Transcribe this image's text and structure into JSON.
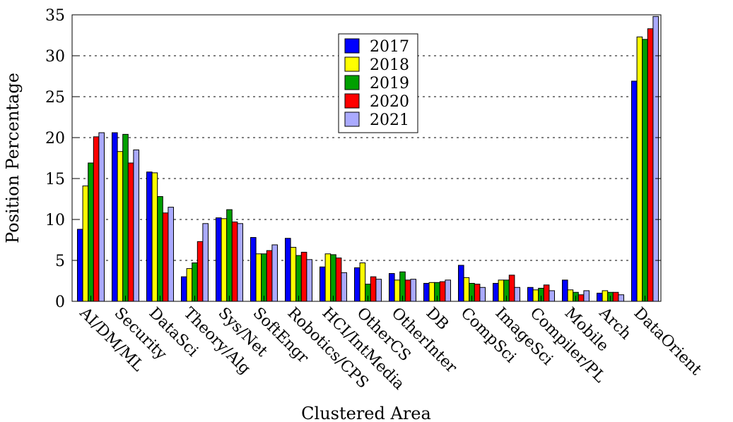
{
  "chart_data": {
    "type": "bar",
    "xlabel": "Clustered Area",
    "ylabel": "Position Percentage",
    "ylim": [
      0,
      35
    ],
    "yticks": [
      0,
      5,
      10,
      15,
      20,
      25,
      30,
      35
    ],
    "grid": true,
    "legend_position": "top-center",
    "categories": [
      "AI/DM/ML",
      "Security",
      "DataSci",
      "Theory/Alg",
      "Sys/Net",
      "SoftEngr",
      "Robotics/CPS",
      "HCI/IntMedia",
      "OtherCS",
      "OtherInter",
      "DB",
      "CompSci",
      "ImageSci",
      "Compiler/PL",
      "Mobile",
      "Arch",
      "DataOrient"
    ],
    "series": [
      {
        "name": "2017",
        "color": "#0000ff",
        "values": [
          8.8,
          20.6,
          15.8,
          3.0,
          10.2,
          7.8,
          7.7,
          4.2,
          4.1,
          3.4,
          2.2,
          4.4,
          2.2,
          1.7,
          2.6,
          1.0,
          26.9
        ]
      },
      {
        "name": "2018",
        "color": "#ffff00",
        "values": [
          14.1,
          18.3,
          15.7,
          4.0,
          10.1,
          5.8,
          6.6,
          5.8,
          4.7,
          2.6,
          2.3,
          2.9,
          2.6,
          1.4,
          1.4,
          1.3,
          32.3
        ]
      },
      {
        "name": "2019",
        "color": "#00a000",
        "values": [
          16.9,
          20.4,
          12.8,
          4.7,
          11.2,
          5.8,
          5.6,
          5.7,
          2.1,
          3.6,
          2.3,
          2.2,
          2.6,
          1.6,
          1.1,
          1.1,
          32.0
        ]
      },
      {
        "name": "2020",
        "color": "#ff0000",
        "values": [
          20.1,
          16.9,
          10.8,
          7.3,
          9.7,
          6.2,
          6.0,
          5.3,
          3.0,
          2.6,
          2.4,
          2.1,
          3.2,
          2.0,
          0.8,
          1.1,
          33.3
        ]
      },
      {
        "name": "2021",
        "color": "#aaaaff",
        "values": [
          20.6,
          18.5,
          11.5,
          9.5,
          9.5,
          6.9,
          5.1,
          3.5,
          2.7,
          2.7,
          2.6,
          1.7,
          1.7,
          1.3,
          1.3,
          0.8,
          34.8
        ]
      }
    ]
  }
}
